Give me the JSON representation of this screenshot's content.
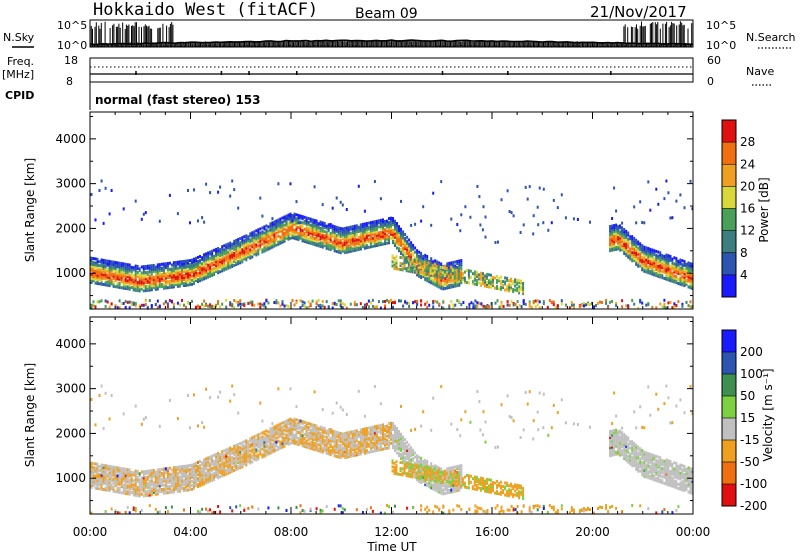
{
  "header": {
    "radar": "Hokkaido West (fitACF)",
    "beam": "Beam 09",
    "date": "21/Nov/2017"
  },
  "top_panels": {
    "nsky_label": "N.Sky",
    "nsky_tick_high": "10^5",
    "nsky_tick_low": "10^0",
    "nsearch_label": "N.Search",
    "freq_label": "Freq.",
    "freq_unit": "[MHz]",
    "freq_tick_high": "18",
    "freq_tick_low": "8",
    "nave_label": "Nave",
    "nave_tick_high": "60",
    "nave_tick_low": "0",
    "cpid_label": "CPID",
    "cpid_text": "normal (fast stereo) 153"
  },
  "chart_data": [
    {
      "type": "heatmap",
      "name": "power",
      "ylabel": "Slant Range [km]",
      "y_ticks": [
        1000,
        2000,
        3000,
        4000
      ],
      "ylim": [
        200,
        4600
      ],
      "colorbar_label": "Power [dB]",
      "colorbar_ticks": [
        4,
        8,
        12,
        16,
        20,
        24,
        28
      ],
      "colorbar_range": [
        0,
        32
      ],
      "colors": [
        "#1a1aff",
        "#2b55b0",
        "#3d7f7f",
        "#48a05a",
        "#d8d83a",
        "#f0a020",
        "#f07010",
        "#e01010"
      ],
      "scatter_echo_range_km": [
        {
          "hour": 0,
          "center": 1050,
          "width": 300
        },
        {
          "hour": 2,
          "center": 850,
          "width": 300
        },
        {
          "hour": 4,
          "center": 1000,
          "width": 300
        },
        {
          "hour": 6,
          "center": 1500,
          "width": 300
        },
        {
          "hour": 8,
          "center": 2050,
          "width": 250
        },
        {
          "hour": 10,
          "center": 1700,
          "width": 250
        },
        {
          "hour": 12,
          "center": 1950,
          "width": 250
        },
        {
          "hour": 13,
          "center": 1200,
          "width": 250
        },
        {
          "hour": 14,
          "center": 900,
          "width": 200
        },
        {
          "hour": 21,
          "center": 1800,
          "width": 250
        },
        {
          "hour": 22,
          "center": 1300,
          "width": 250
        },
        {
          "hour": 24,
          "center": 900,
          "width": 200
        }
      ]
    },
    {
      "type": "heatmap",
      "name": "velocity",
      "ylabel": "Slant Range [km]",
      "y_ticks": [
        1000,
        2000,
        3000,
        4000
      ],
      "ylim": [
        200,
        4600
      ],
      "colorbar_label": "Velocity [m s⁻¹]",
      "colorbar_ticks": [
        200,
        100,
        50,
        15,
        -15,
        -50,
        -100,
        -200
      ],
      "colors": [
        "#1a1aff",
        "#2b55b0",
        "#3d9050",
        "#7dd040",
        "#c0c0c0",
        "#f0a020",
        "#f07010",
        "#e01010"
      ]
    }
  ],
  "x_axis": {
    "label": "Time UT",
    "ticks": [
      "00:00",
      "04:00",
      "08:00",
      "12:00",
      "16:00",
      "20:00",
      "00:00"
    ],
    "range_hours": [
      0,
      24
    ]
  }
}
